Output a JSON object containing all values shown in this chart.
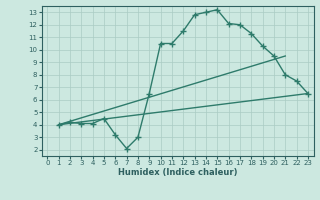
{
  "line1_x": [
    1,
    2,
    3,
    4,
    5,
    6,
    7,
    8,
    9,
    10,
    11,
    12,
    13,
    14,
    15,
    16,
    17,
    18,
    19,
    20,
    21,
    22,
    23
  ],
  "line1_y": [
    4.0,
    4.2,
    4.1,
    4.1,
    4.5,
    3.2,
    2.1,
    3.0,
    6.5,
    10.5,
    10.5,
    11.5,
    12.8,
    13.0,
    13.2,
    12.1,
    12.0,
    11.3,
    10.3,
    9.5,
    8.0,
    7.5,
    6.5
  ],
  "line2_x": [
    1,
    23
  ],
  "line2_y": [
    4.0,
    6.5
  ],
  "line3_x": [
    1,
    21
  ],
  "line3_y": [
    4.0,
    9.5
  ],
  "color": "#2e7b6b",
  "bg_color": "#cce8e0",
  "grid_color": "#aaccc4",
  "xlabel": "Humidex (Indice chaleur)",
  "xlim": [
    -0.5,
    23.5
  ],
  "ylim": [
    1.5,
    13.5
  ],
  "xticks": [
    0,
    1,
    2,
    3,
    4,
    5,
    6,
    7,
    8,
    9,
    10,
    11,
    12,
    13,
    14,
    15,
    16,
    17,
    18,
    19,
    20,
    21,
    22,
    23
  ],
  "yticks": [
    2,
    3,
    4,
    5,
    6,
    7,
    8,
    9,
    10,
    11,
    12,
    13
  ],
  "marker": "+",
  "linewidth": 1.0,
  "markersize": 4,
  "markeredgewidth": 1.0,
  "axis_color": "#2e6060",
  "tick_fontsize": 5.0,
  "xlabel_fontsize": 6.0
}
